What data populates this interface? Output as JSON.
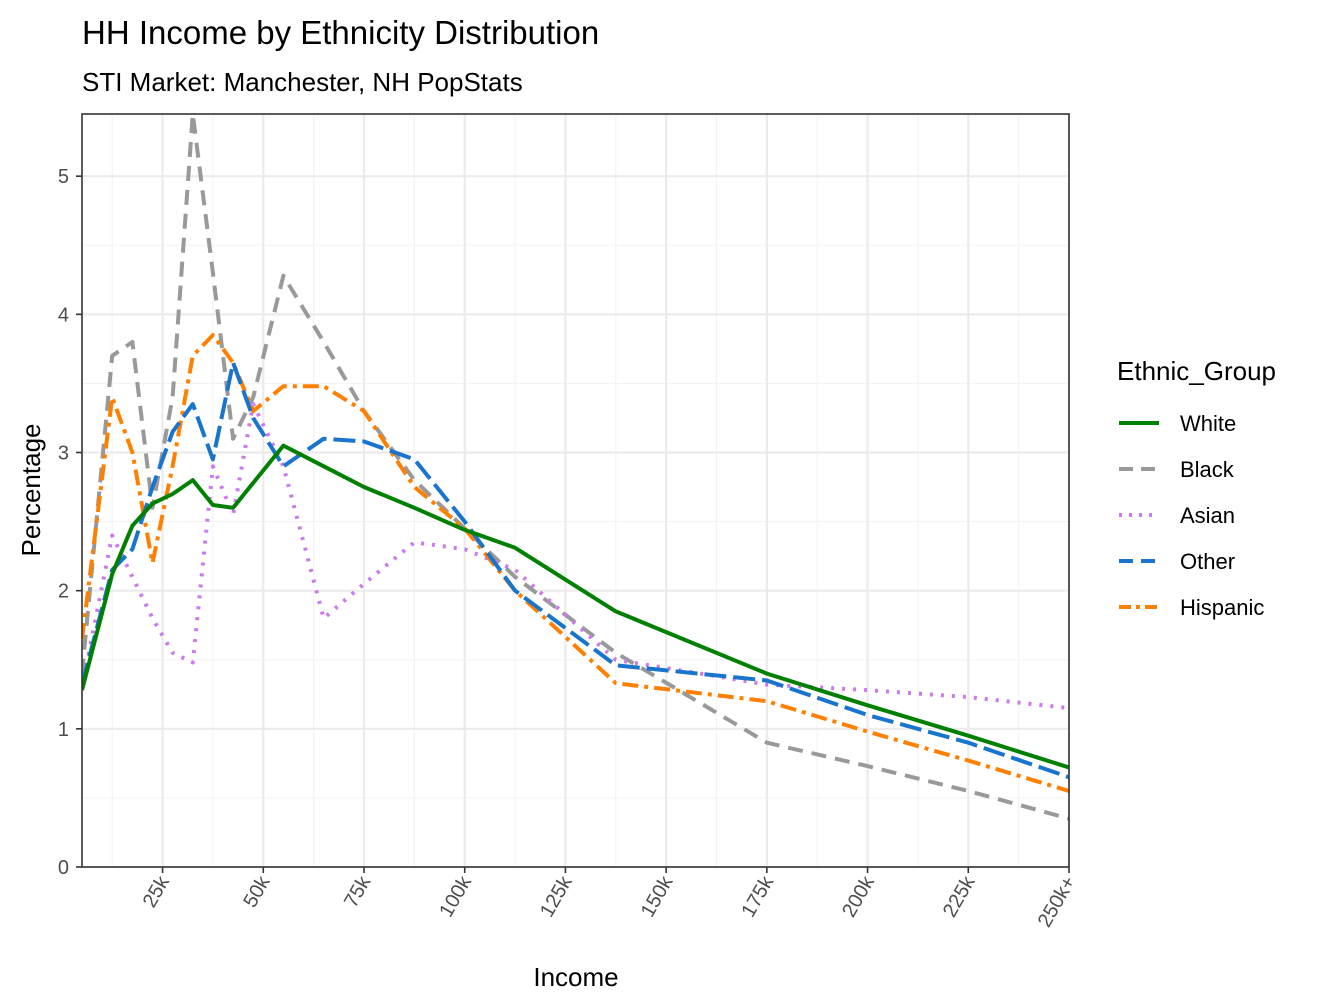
{
  "chart_data": {
    "type": "line",
    "title": "HH Income by Ethnicity Distribution",
    "subtitle": "STI Market: Manchester, NH PopStats",
    "xlabel": "Income",
    "ylabel": "Percentage",
    "xlim": [
      5,
      250
    ],
    "ylim": [
      0,
      5.45
    ],
    "x_ticks": [
      {
        "value": 25,
        "label": "25k"
      },
      {
        "value": 50,
        "label": "50k"
      },
      {
        "value": 75,
        "label": "75k"
      },
      {
        "value": 100,
        "label": "100k"
      },
      {
        "value": 125,
        "label": "125k"
      },
      {
        "value": 150,
        "label": "150k"
      },
      {
        "value": 175,
        "label": "175k"
      },
      {
        "value": 200,
        "label": "200k"
      },
      {
        "value": 225,
        "label": "225k"
      },
      {
        "value": 250,
        "label": "250k+"
      }
    ],
    "y_ticks": [
      0,
      1,
      2,
      3,
      4,
      5
    ],
    "legend_title": "Ethnic_Group",
    "legend_position": "right",
    "series": [
      {
        "name": "White",
        "color": "#008000",
        "dash": "solid",
        "x": [
          5,
          12.5,
          17.5,
          22.5,
          27.5,
          32.5,
          37.5,
          42.5,
          47.5,
          55,
          65,
          75,
          87.5,
          100,
          112.5,
          137.5,
          175,
          200,
          225,
          250
        ],
        "y": [
          1.28,
          2.12,
          2.47,
          2.63,
          2.7,
          2.8,
          2.62,
          2.6,
          2.78,
          3.05,
          2.9,
          2.75,
          2.6,
          2.44,
          2.31,
          1.85,
          1.4,
          1.17,
          0.95,
          0.72
        ]
      },
      {
        "name": "Black",
        "color": "#999999",
        "dash": "dashed",
        "x": [
          5,
          12.5,
          17.5,
          22.5,
          27.5,
          32.5,
          37.5,
          42.5,
          47.5,
          55,
          65,
          75,
          87.5,
          100,
          112.5,
          137.5,
          175,
          200,
          225,
          250
        ],
        "y": [
          1.4,
          3.7,
          3.8,
          2.6,
          3.4,
          5.45,
          4.3,
          3.1,
          3.4,
          4.28,
          3.8,
          3.3,
          2.8,
          2.45,
          2.1,
          1.55,
          0.9,
          0.73,
          0.55,
          0.35
        ]
      },
      {
        "name": "Asian",
        "color": "#CC79F0",
        "dash": "dotted",
        "x": [
          5,
          12.5,
          17.5,
          22.5,
          27.5,
          32.5,
          37.5,
          42.5,
          47.5,
          55,
          65,
          75,
          87.5,
          100,
          112.5,
          137.5,
          175,
          200,
          225,
          250
        ],
        "y": [
          1.3,
          2.4,
          2.1,
          1.8,
          1.55,
          1.48,
          2.9,
          2.55,
          3.35,
          2.9,
          1.8,
          2.05,
          2.35,
          2.3,
          2.15,
          1.5,
          1.32,
          1.28,
          1.23,
          1.15
        ]
      },
      {
        "name": "Other",
        "color": "#1874CD",
        "dash": "longdash",
        "x": [
          5,
          12.5,
          17.5,
          22.5,
          27.5,
          32.5,
          37.5,
          42.5,
          47.5,
          55,
          65,
          75,
          87.5,
          100,
          112.5,
          137.5,
          175,
          200,
          225,
          250
        ],
        "y": [
          1.32,
          2.15,
          2.3,
          2.75,
          3.15,
          3.35,
          2.95,
          3.65,
          3.25,
          2.9,
          3.1,
          3.08,
          2.95,
          2.5,
          2.0,
          1.46,
          1.35,
          1.1,
          0.9,
          0.65
        ]
      },
      {
        "name": "Hispanic",
        "color": "#FF8000",
        "dash": "dotdash",
        "x": [
          5,
          12.5,
          17.5,
          22.5,
          27.5,
          32.5,
          37.5,
          42.5,
          47.5,
          55,
          65,
          75,
          87.5,
          100,
          112.5,
          137.5,
          175,
          200,
          225,
          250
        ],
        "y": [
          1.65,
          3.4,
          3.0,
          2.2,
          2.9,
          3.7,
          3.85,
          3.65,
          3.3,
          3.48,
          3.48,
          3.3,
          2.75,
          2.45,
          2.0,
          1.33,
          1.2,
          0.98,
          0.77,
          0.55
        ]
      }
    ]
  }
}
